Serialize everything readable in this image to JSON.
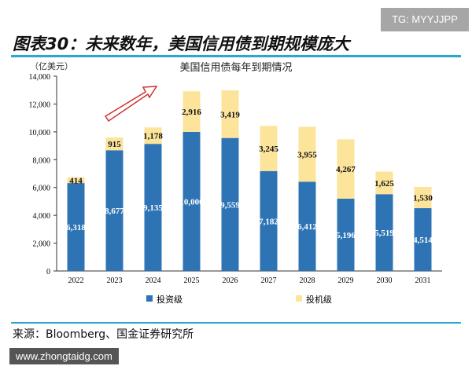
{
  "watermark_tg": "TG: MYYJJPP",
  "figure_title": "图表30：未来数年，美国信用债到期规模庞大",
  "source": "来源：Bloomberg、国金证券研究所",
  "watermark_site": "www.zhongtaidg.com",
  "chart_data": {
    "type": "bar",
    "stacked": true,
    "title": "美国信用债每年到期情况",
    "ylabel": "（亿美元）",
    "ylim": [
      0,
      14000
    ],
    "yticks": [
      "0",
      "2,000",
      "4,000",
      "6,000",
      "8,000",
      "10,000",
      "12,000",
      "14,000"
    ],
    "categories": [
      "2022",
      "2023",
      "2024",
      "2025",
      "2026",
      "2027",
      "2028",
      "2029",
      "2030",
      "2031"
    ],
    "series": [
      {
        "name": "投资级",
        "color": "#2e74b5",
        "values": [
          6318,
          8677,
          9135,
          10000,
          9559,
          7182,
          6412,
          5196,
          5519,
          4514
        ],
        "labels": [
          "6,318",
          "8,677",
          "9,135",
          "10,000",
          "9,559",
          "7,182",
          "6,412",
          "5,196",
          "5,519",
          "4,514"
        ]
      },
      {
        "name": "投机级",
        "color": "#fce49b",
        "values": [
          414,
          915,
          1178,
          2916,
          3419,
          3245,
          3955,
          4267,
          1625,
          1530
        ],
        "labels": [
          "414",
          "915",
          "1,178",
          "2,916",
          "3,419",
          "3,245",
          "3,955",
          "4,267",
          "1,625",
          "1,530"
        ]
      }
    ],
    "legend": "bottom",
    "grid": false,
    "annotation": "red upward arrow"
  }
}
